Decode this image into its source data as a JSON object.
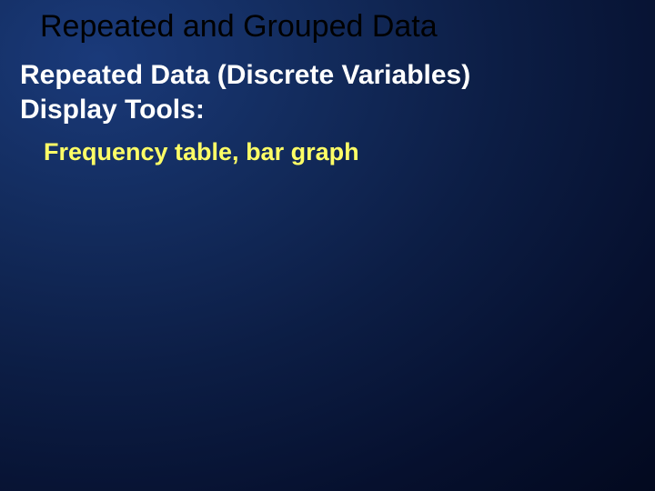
{
  "slide": {
    "title": "Repeated and Grouped Data",
    "subtitle_line1": "Repeated Data (Discrete Variables)",
    "subtitle_line2": "Display Tools:",
    "body_line": "Frequency table, bar graph",
    "background_gradient": {
      "type": "radial",
      "center": "top-left",
      "stops": [
        "#1a3a7a",
        "#132c5e",
        "#0c1d44",
        "#06102e",
        "#02081c"
      ]
    },
    "title_color": "#000000",
    "subtitle_color": "#ffffff",
    "body_color": "#ffff66",
    "title_fontsize": 34,
    "subtitle_fontsize": 30,
    "body_fontsize": 27,
    "title_font": "Arial",
    "subtitle_font": "Arial Bold",
    "body_font": "Comic Sans MS Bold"
  }
}
